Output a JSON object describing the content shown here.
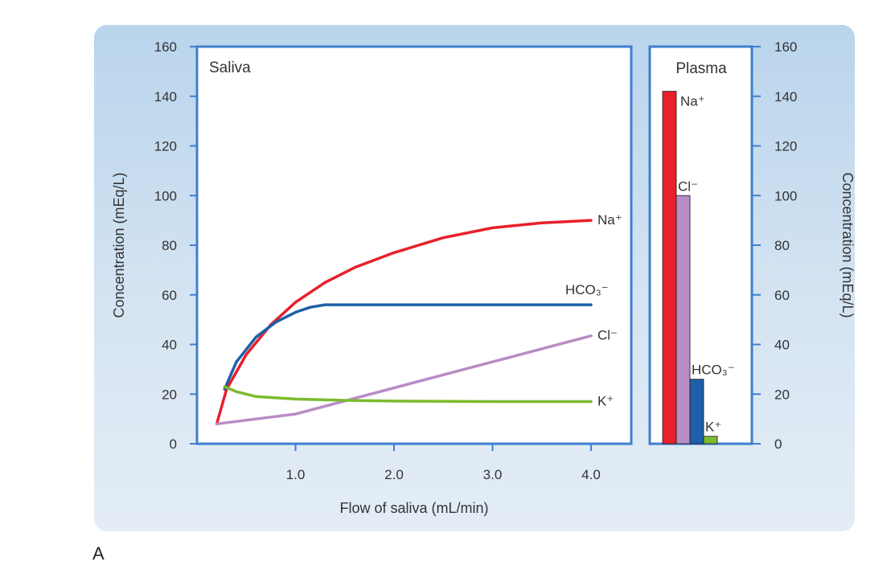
{
  "figure_label": "A",
  "chart_data": [
    {
      "type": "line",
      "title": "Saliva",
      "xlabel": "Flow of saliva (mL/min)",
      "ylabel": "Concentration (mEq/L)",
      "xlim": [
        0,
        4.4
      ],
      "ylim": [
        0,
        160
      ],
      "x_ticks": [
        "1.0",
        "2.0",
        "3.0",
        "4.0"
      ],
      "y_ticks": [
        "0",
        "20",
        "40",
        "60",
        "80",
        "100",
        "120",
        "140",
        "160"
      ],
      "grid": false,
      "series": [
        {
          "name": "Na⁺",
          "color": "#e8202a",
          "x": [
            0.2,
            0.3,
            0.5,
            0.75,
            1.0,
            1.3,
            1.6,
            2.0,
            2.5,
            3.0,
            3.5,
            4.0
          ],
          "y": [
            8,
            22,
            36,
            48,
            57,
            65,
            71,
            77,
            83,
            87,
            89,
            90
          ]
        },
        {
          "name": "HCO₃⁻",
          "color": "#1f5fa8",
          "x": [
            0.28,
            0.4,
            0.6,
            0.8,
            1.0,
            1.15,
            1.3,
            2.0,
            3.0,
            4.0
          ],
          "y": [
            22,
            33,
            43,
            49,
            53,
            55,
            56,
            56,
            56,
            56
          ]
        },
        {
          "name": "Cl⁻",
          "color": "#b98cc6",
          "x": [
            0.2,
            0.5,
            1.0,
            2.0,
            3.0,
            4.0
          ],
          "y": [
            8,
            9.5,
            12,
            22.5,
            33,
            43.5
          ]
        },
        {
          "name": "K⁺",
          "color": "#7cbb2e",
          "x": [
            0.28,
            0.4,
            0.6,
            1.0,
            1.5,
            2.0,
            3.0,
            4.0
          ],
          "y": [
            23,
            21,
            19,
            18,
            17.5,
            17.2,
            17,
            17
          ]
        }
      ]
    },
    {
      "type": "bar",
      "title": "Plasma",
      "ylabel": "Concentration (mEq/L)",
      "ylim": [
        0,
        160
      ],
      "y_ticks": [
        "0",
        "20",
        "40",
        "60",
        "80",
        "100",
        "120",
        "140",
        "160"
      ],
      "categories": [
        "Na⁺",
        "Cl⁻",
        "HCO₃⁻",
        "K⁺"
      ],
      "values": [
        142,
        100,
        26,
        3
      ],
      "colors": [
        "#e8202a",
        "#b98cc6",
        "#1f5fa8",
        "#7cbb2e"
      ]
    }
  ]
}
